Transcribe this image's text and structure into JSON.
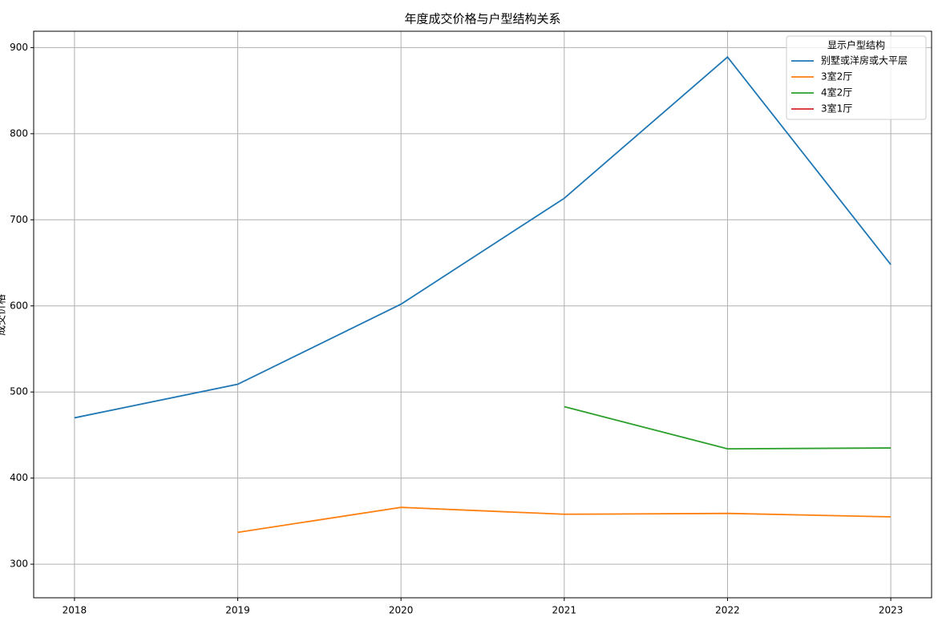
{
  "chart_data": {
    "type": "line",
    "title": "年度成交价格与户型结构关系",
    "ylabel": "成交价格",
    "x": [
      2018,
      2019,
      2020,
      2021,
      2022,
      2023
    ],
    "series": [
      {
        "name": "别墅或洋房或大平层",
        "color": "#1f77b4",
        "values": [
          470,
          509,
          602,
          725,
          889,
          648
        ]
      },
      {
        "name": "3室2厅",
        "color": "#ff7f0e",
        "values": [
          null,
          337,
          366,
          358,
          359,
          355
        ]
      },
      {
        "name": "4室2厅",
        "color": "#2ca02c",
        "values": [
          null,
          null,
          null,
          483,
          434,
          435
        ]
      },
      {
        "name": "3室1厅",
        "color": "#d62728",
        "values": [
          null,
          null,
          null,
          null,
          null,
          null
        ]
      }
    ],
    "xlim": [
      2017.75,
      2023.25
    ],
    "xticks": [
      2018,
      2019,
      2020,
      2021,
      2022,
      2023
    ],
    "ylim": [
      261,
      919
    ],
    "yticks": [
      300,
      400,
      500,
      600,
      700,
      800,
      900
    ],
    "grid": true,
    "legend_title": "显示户型结构",
    "legend_position": "upper-right"
  }
}
